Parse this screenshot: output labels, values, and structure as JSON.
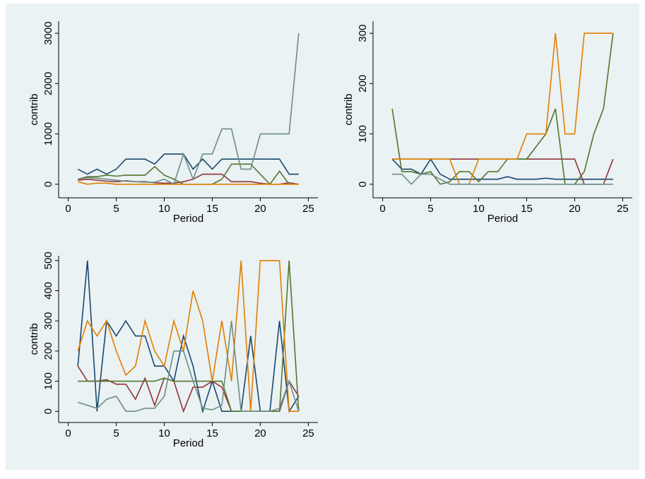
{
  "chart_data": [
    {
      "type": "line",
      "x_label": "Period",
      "y_label": "contrib",
      "x": [
        1,
        2,
        3,
        4,
        5,
        6,
        7,
        8,
        9,
        10,
        11,
        12,
        13,
        14,
        15,
        16,
        17,
        18,
        19,
        20,
        21,
        22,
        23,
        24
      ],
      "xlim": [
        -1,
        26
      ],
      "xticks": [
        0,
        5,
        10,
        15,
        20,
        25
      ],
      "ylim": [
        -270,
        3240
      ],
      "yticks": [
        0,
        1000,
        2000,
        3000
      ],
      "series": [
        {
          "color": "#1a476f",
          "values": [
            300,
            200,
            300,
            200,
            300,
            500,
            500,
            500,
            400,
            600,
            600,
            600,
            300,
            500,
            300,
            500,
            500,
            500,
            500,
            500,
            500,
            500,
            200,
            200
          ]
        },
        {
          "color": "#90353b",
          "values": [
            80,
            100,
            80,
            60,
            50,
            70,
            50,
            50,
            30,
            20,
            20,
            50,
            100,
            200,
            200,
            200,
            50,
            50,
            50,
            20,
            0,
            0,
            30,
            0
          ]
        },
        {
          "color": "#55752f",
          "values": [
            100,
            150,
            150,
            180,
            160,
            180,
            180,
            180,
            350,
            180,
            100,
            0,
            0,
            0,
            0,
            100,
            400,
            400,
            400,
            200,
            0,
            260,
            0,
            0
          ]
        },
        {
          "color": "#e37e00",
          "values": [
            50,
            0,
            20,
            20,
            0,
            0,
            0,
            0,
            0,
            0,
            0,
            0,
            0,
            0,
            0,
            0,
            0,
            0,
            0,
            0,
            0,
            0,
            0,
            0
          ]
        },
        {
          "color": "#6e8e84",
          "values": [
            100,
            130,
            120,
            100,
            80,
            60,
            50,
            40,
            40,
            100,
            0,
            600,
            100,
            600,
            600,
            1100,
            1100,
            300,
            300,
            1000,
            1000,
            1000,
            1000,
            3000
          ]
        }
      ]
    },
    {
      "type": "line",
      "x_label": "Period",
      "y_label": "contrib",
      "x": [
        1,
        2,
        3,
        4,
        5,
        6,
        7,
        8,
        9,
        10,
        11,
        12,
        13,
        14,
        15,
        16,
        17,
        18,
        19,
        20,
        21,
        22,
        23,
        24
      ],
      "xlim": [
        -1,
        26
      ],
      "xticks": [
        0,
        5,
        10,
        15,
        20,
        25
      ],
      "ylim": [
        -27,
        324
      ],
      "yticks": [
        0,
        100,
        200,
        300
      ],
      "series": [
        {
          "color": "#1a476f",
          "values": [
            50,
            30,
            30,
            20,
            50,
            20,
            10,
            10,
            10,
            10,
            10,
            10,
            15,
            10,
            10,
            10,
            12,
            10,
            10,
            10,
            10,
            10,
            10,
            10
          ]
        },
        {
          "color": "#90353b",
          "values": [
            50,
            50,
            50,
            50,
            50,
            50,
            50,
            50,
            50,
            50,
            50,
            50,
            50,
            50,
            50,
            50,
            50,
            50,
            50,
            50,
            0,
            0,
            0,
            50
          ]
        },
        {
          "color": "#55752f",
          "values": [
            150,
            25,
            25,
            20,
            25,
            0,
            5,
            25,
            25,
            5,
            25,
            25,
            50,
            50,
            50,
            75,
            100,
            150,
            0,
            0,
            25,
            100,
            150,
            300
          ]
        },
        {
          "color": "#e37e00",
          "values": [
            50,
            50,
            50,
            50,
            50,
            50,
            50,
            0,
            0,
            50,
            50,
            50,
            50,
            50,
            100,
            100,
            100,
            300,
            100,
            100,
            300,
            300,
            300,
            300
          ]
        },
        {
          "color": "#6e8e84",
          "values": [
            20,
            20,
            0,
            20,
            20,
            10,
            0,
            0,
            0,
            0,
            0,
            0,
            0,
            0,
            0,
            0,
            0,
            0,
            0,
            0,
            0,
            0,
            0,
            0
          ]
        }
      ]
    },
    {
      "type": "line",
      "x_label": "Period",
      "y_label": "contrib",
      "x": [
        1,
        2,
        3,
        4,
        5,
        6,
        7,
        8,
        9,
        10,
        11,
        12,
        13,
        14,
        15,
        16,
        17,
        18,
        19,
        20,
        21,
        22,
        23,
        24
      ],
      "xlim": [
        -1,
        26
      ],
      "xticks": [
        0,
        5,
        10,
        15,
        20,
        25
      ],
      "ylim": [
        -37,
        516
      ],
      "yticks": [
        0,
        100,
        200,
        300,
        400,
        500
      ],
      "series": [
        {
          "color": "#1a476f",
          "values": [
            150,
            500,
            0,
            300,
            250,
            300,
            250,
            250,
            150,
            150,
            100,
            250,
            150,
            0,
            100,
            0,
            0,
            0,
            250,
            0,
            0,
            300,
            0,
            50
          ]
        },
        {
          "color": "#90353b",
          "values": [
            150,
            100,
            100,
            105,
            90,
            90,
            40,
            110,
            20,
            110,
            100,
            0,
            80,
            80,
            100,
            80,
            0,
            0,
            0,
            0,
            0,
            0,
            100,
            50
          ]
        },
        {
          "color": "#55752f",
          "values": [
            100,
            100,
            100,
            100,
            100,
            100,
            100,
            100,
            100,
            110,
            100,
            100,
            100,
            100,
            100,
            100,
            0,
            0,
            0,
            0,
            0,
            0,
            500,
            0
          ]
        },
        {
          "color": "#e37e00",
          "values": [
            200,
            300,
            250,
            300,
            200,
            120,
            150,
            300,
            200,
            150,
            300,
            200,
            400,
            300,
            100,
            300,
            100,
            500,
            0,
            500,
            500,
            500,
            0,
            0
          ]
        },
        {
          "color": "#6e8e84",
          "values": [
            30,
            20,
            10,
            40,
            50,
            0,
            0,
            10,
            10,
            50,
            200,
            200,
            100,
            10,
            5,
            20,
            300,
            0,
            0,
            0,
            0,
            10,
            100,
            0
          ]
        }
      ]
    }
  ]
}
